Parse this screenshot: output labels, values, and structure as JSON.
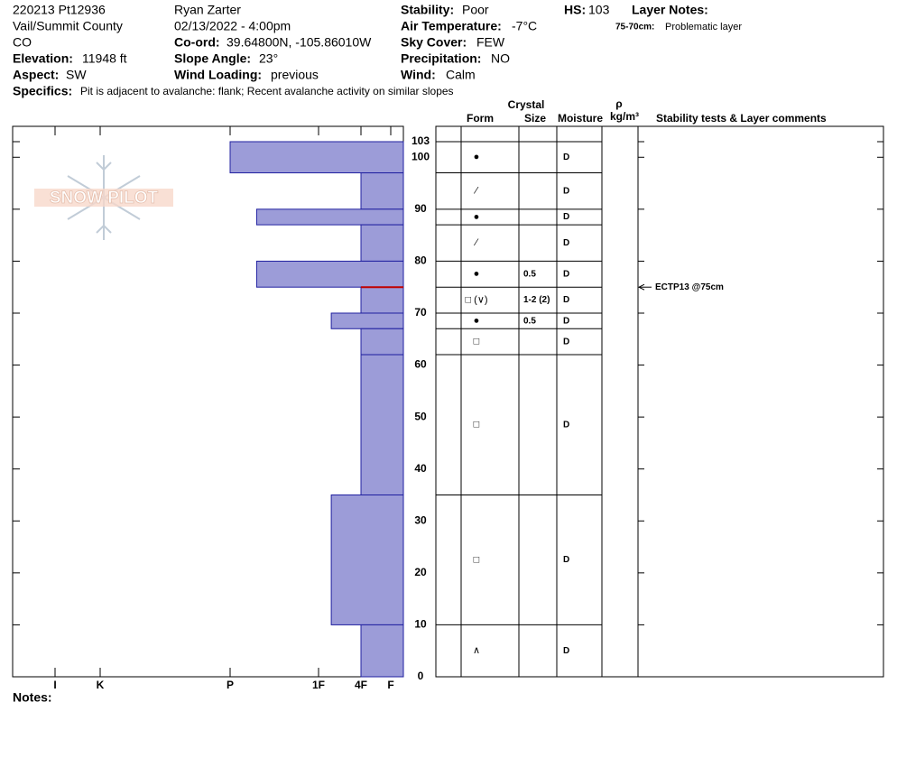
{
  "header": {
    "pit": "220213 Pt12936",
    "location": "Vail/Summit County",
    "state": "CO",
    "elevation": {
      "label": "Elevation:",
      "value": "11948 ft"
    },
    "aspect": {
      "label": "Aspect:",
      "value": "SW"
    },
    "observer": "Ryan Zarter",
    "datetime": "02/13/2022 - 4:00pm",
    "coord": {
      "label": "Co-ord:",
      "value": "39.64800N, -105.86010W"
    },
    "slope": {
      "label": "Slope Angle:",
      "value": "23°"
    },
    "wind_loading": {
      "label": "Wind Loading:",
      "value": "previous"
    },
    "stability": {
      "label": "Stability:",
      "value": "Poor"
    },
    "air_temp": {
      "label": "Air Temperature:",
      "value": "-7°C"
    },
    "sky": {
      "label": "Sky Cover:",
      "value": "FEW"
    },
    "precip": {
      "label": "Precipitation:",
      "value": "NO"
    },
    "wind": {
      "label": "Wind:",
      "value": "Calm"
    },
    "hs": {
      "label": "HS:",
      "value": "103"
    },
    "layer_notes": {
      "label": "Layer Notes:",
      "items": [
        {
          "range": "75-70cm:",
          "text": "Problematic layer"
        }
      ]
    },
    "specifics": {
      "label": "Specifics:",
      "value": "Pit is adjacent to avalanche: flank; Recent avalanche activity on similar slopes"
    }
  },
  "logo": "SNOW PILOT",
  "chart_data": {
    "type": "snow-profile",
    "color": "#9c9cd8",
    "xlim": [
      0,
      6.5
    ],
    "xticks": [
      {
        "value": 1,
        "label": "F"
      },
      {
        "value": 2,
        "label": "4F"
      },
      {
        "value": 3,
        "label": "1F"
      },
      {
        "value": 4,
        "label": "P"
      },
      {
        "value": 5,
        "label": "K"
      },
      {
        "value": 6,
        "label": "I"
      }
    ],
    "ylim": [
      0,
      103
    ],
    "yticks": [
      0,
      10,
      20,
      30,
      40,
      50,
      60,
      70,
      80,
      90,
      100,
      103
    ],
    "table_headers": {
      "crystal": "Crystal",
      "form": "Form",
      "size": "Size",
      "moisture": "Moisture",
      "rho": "ρ",
      "density": "kg/m³",
      "comments": "Stability tests & Layer comments"
    },
    "layers": [
      {
        "top": 103,
        "bottom": 97,
        "hardness": 4,
        "form": "●",
        "moisture": "D"
      },
      {
        "top": 97,
        "bottom": 90,
        "hardness": 2,
        "form": "⁄",
        "moisture": "D"
      },
      {
        "top": 90,
        "bottom": 87,
        "hardness": 3.7,
        "form": "●",
        "moisture": "D"
      },
      {
        "top": 87,
        "bottom": 80,
        "hardness": 2,
        "form": "⁄",
        "moisture": "D"
      },
      {
        "top": 80,
        "bottom": 75,
        "hardness": 3.7,
        "form": "●",
        "size": "0.5",
        "moisture": "D"
      },
      {
        "top": 75,
        "bottom": 70,
        "hardness": 2,
        "form": "□ (∨)",
        "size": "1-2 (2)",
        "moisture": "D"
      },
      {
        "top": 70,
        "bottom": 67,
        "hardness": 2.7,
        "form": "●",
        "size": "0.5",
        "moisture": "D"
      },
      {
        "top": 67,
        "bottom": 62,
        "hardness": 2,
        "form": "□",
        "moisture": "D"
      },
      {
        "top": 62,
        "bottom": 35,
        "hardness": 2,
        "form": "□",
        "moisture": "D"
      },
      {
        "top": 35,
        "bottom": 10,
        "hardness": 2.7,
        "form": "□",
        "moisture": "D"
      },
      {
        "top": 10,
        "bottom": 0,
        "hardness": 2,
        "form": "∧",
        "moisture": "D"
      }
    ],
    "tests": [
      {
        "depth": 75,
        "label": "ECTP13 @75cm"
      }
    ]
  },
  "notes_label": "Notes:"
}
